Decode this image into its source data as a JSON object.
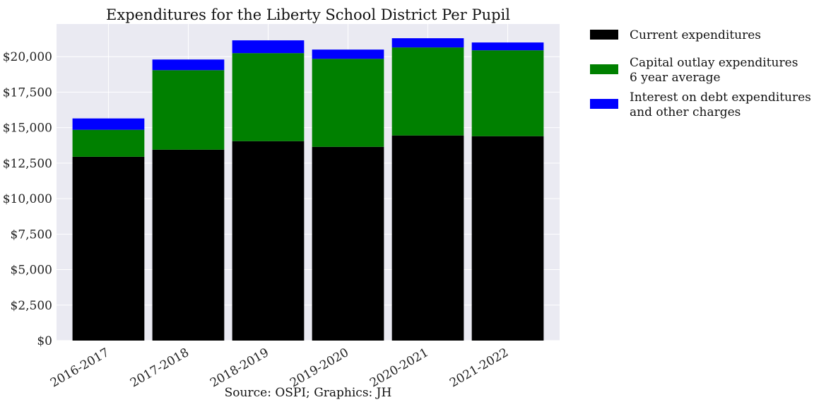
{
  "chart_data": {
    "type": "bar",
    "stacked": true,
    "title": "Expenditures for the Liberty School District Per Pupil",
    "source": "Source: OSPI; Graphics: JH",
    "categories": [
      "2016-2017",
      "2017-2018",
      "2018-2019",
      "2019-2020",
      "2020-2021",
      "2021-2022"
    ],
    "series": [
      {
        "name": "Current expenditures",
        "values": [
          12950,
          13450,
          14050,
          13650,
          14450,
          14400
        ],
        "color": "#000000"
      },
      {
        "name": "Capital outlay expenditures\n6 year average",
        "values": [
          1900,
          5600,
          6200,
          6200,
          6200,
          6050
        ],
        "color": "#008000"
      },
      {
        "name": "Interest on debt expenditures\nand other charges",
        "values": [
          800,
          750,
          900,
          650,
          650,
          550
        ],
        "color": "#0000ff"
      }
    ],
    "ylim": [
      0,
      22300
    ],
    "yticks": [
      0,
      2500,
      5000,
      7500,
      10000,
      12500,
      15000,
      17500,
      20000
    ],
    "ytick_labels": [
      "$0",
      "$2,500",
      "$5,000",
      "$7,500",
      "$10,000",
      "$12,500",
      "$15,000",
      "$17,500",
      "$20,000"
    ],
    "grid": true,
    "legend_position": "outside-top-right",
    "colors": {
      "plot_background": "#eaeaf2",
      "grid": "#ffffff"
    }
  }
}
